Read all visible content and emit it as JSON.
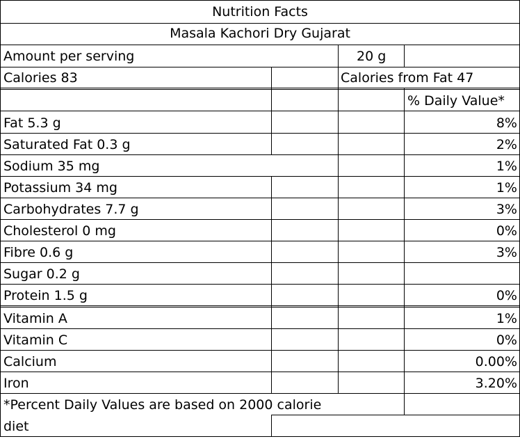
{
  "title": "Nutrition Facts",
  "product_name": "Masala Kachori Dry Gujarat",
  "serving": {
    "label": "Amount per serving",
    "value": "20 g"
  },
  "calories": {
    "label": "Calories 83",
    "from_fat": "Calories from Fat 47"
  },
  "daily_value_header": "% Daily Value*",
  "nutrients": [
    {
      "label": "Fat 5.3 g",
      "dv": "8%"
    },
    {
      "label": "Saturated Fat 0.3 g",
      "dv": "2%"
    },
    {
      "label": "Sodium 35 mg",
      "dv": "1%"
    },
    {
      "label": "Potassium 34 mg",
      "dv": "1%"
    },
    {
      "label": "Carbohydrates 7.7 g",
      "dv": "3%"
    },
    {
      "label": "Cholesterol 0 mg",
      "dv": "0%"
    },
    {
      "label": "Fibre 0.6 g",
      "dv": "3%"
    },
    {
      "label": "Sugar 0.2 g",
      "dv": ""
    },
    {
      "label": "Protein 1.5  g",
      "dv": "0%"
    }
  ],
  "vitamins": [
    {
      "label": "Vitamin A",
      "dv": "1%"
    },
    {
      "label": "Vitamin C",
      "dv": "0%"
    },
    {
      "label": "Calcium",
      "dv": "0.00%"
    },
    {
      "label": "Iron",
      "dv": "3.20%"
    }
  ],
  "footnote": {
    "line1": "*Percent Daily Values are based on 2000 calorie",
    "line2": "diet"
  }
}
